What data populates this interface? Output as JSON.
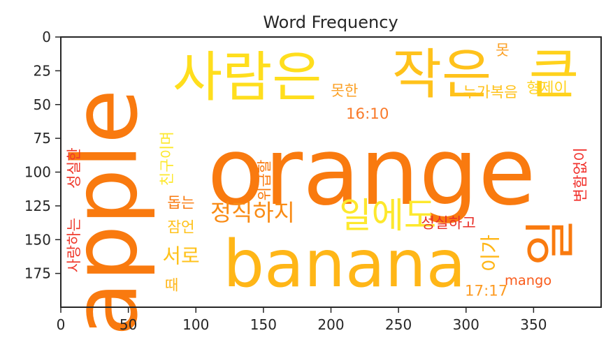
{
  "chart_data": {
    "type": "wordcloud",
    "title": "Word Frequency",
    "xlim": [
      0,
      400
    ],
    "ylim": [
      200,
      0
    ],
    "xticks": [
      0,
      50,
      100,
      150,
      200,
      250,
      300,
      350
    ],
    "yticks": [
      0,
      25,
      50,
      75,
      100,
      125,
      150,
      175
    ],
    "grid": false,
    "palette": "yellow-orange-red",
    "words": [
      {
        "text": "orange",
        "x": 230,
        "y": 100,
        "size": 69,
        "rotation": 0,
        "color": "#f97a0f"
      },
      {
        "text": "apple",
        "x": 33,
        "y": 130,
        "size": 66,
        "rotation": -90,
        "color": "#f97a0f"
      },
      {
        "text": "banana",
        "x": 210,
        "y": 168,
        "size": 48,
        "rotation": 0,
        "color": "#ffb617"
      },
      {
        "text": "사람은",
        "x": 138,
        "y": 30,
        "size": 40,
        "rotation": 0,
        "color": "#ffde1d"
      },
      {
        "text": "작은",
        "x": 282,
        "y": 28,
        "size": 40,
        "rotation": 0,
        "color": "#ffc21b"
      },
      {
        "text": "큰",
        "x": 365,
        "y": 28,
        "size": 40,
        "rotation": 0,
        "color": "#ffd21d"
      },
      {
        "text": "일",
        "x": 363,
        "y": 152,
        "size": 38,
        "rotation": -90,
        "color": "#f97a0f"
      },
      {
        "text": "일에도",
        "x": 242,
        "y": 132,
        "size": 26,
        "rotation": 0,
        "color": "#fde82d"
      },
      {
        "text": "정직하지",
        "x": 142,
        "y": 130,
        "size": 17,
        "rotation": 0,
        "color": "#f98b15"
      },
      {
        "text": "서로",
        "x": 89,
        "y": 162,
        "size": 15,
        "rotation": 0,
        "color": "#ffc21b"
      },
      {
        "text": "누가복음",
        "x": 318,
        "y": 41,
        "size": 11,
        "rotation": 0,
        "color": "#ffc21b"
      },
      {
        "text": "형제이",
        "x": 360,
        "y": 38,
        "size": 11,
        "rotation": 0,
        "color": "#ffd21d"
      },
      {
        "text": "못한",
        "x": 210,
        "y": 40,
        "size": 11,
        "rotation": 0,
        "color": "#fba127"
      },
      {
        "text": "못",
        "x": 327,
        "y": 10,
        "size": 11,
        "rotation": 0,
        "color": "#fba127"
      },
      {
        "text": "16:10",
        "x": 227,
        "y": 57,
        "size": 11,
        "rotation": 0,
        "color": "#f97a2a"
      },
      {
        "text": "친구이며",
        "x": 79,
        "y": 90,
        "size": 11,
        "rotation": -90,
        "color": "#fde82d"
      },
      {
        "text": "위급할",
        "x": 151,
        "y": 106,
        "size": 11,
        "rotation": -90,
        "color": "#f97a0f"
      },
      {
        "text": "변함없이",
        "x": 385,
        "y": 102,
        "size": 11,
        "rotation": -90,
        "color": "#f1322d"
      },
      {
        "text": "성실한",
        "x": 10,
        "y": 97,
        "size": 11,
        "rotation": -90,
        "color": "#ef3a2d"
      },
      {
        "text": "사랑하는",
        "x": 10,
        "y": 154,
        "size": 11,
        "rotation": -90,
        "color": "#ef3a2d"
      },
      {
        "text": "돕는",
        "x": 89,
        "y": 123,
        "size": 11,
        "rotation": 0,
        "color": "#f97a0f"
      },
      {
        "text": "잠언",
        "x": 89,
        "y": 141,
        "size": 11,
        "rotation": 0,
        "color": "#ffc21b"
      },
      {
        "text": "때",
        "x": 82,
        "y": 184,
        "size": 11,
        "rotation": 0,
        "color": "#ffb617"
      },
      {
        "text": "성실하고",
        "x": 287,
        "y": 138,
        "size": 11,
        "rotation": 0,
        "color": "#e8302a"
      },
      {
        "text": "이가",
        "x": 318,
        "y": 160,
        "size": 15,
        "rotation": -90,
        "color": "#ffb617"
      },
      {
        "text": "mango",
        "x": 346,
        "y": 180,
        "size": 10,
        "rotation": 0,
        "color": "#f95c1c"
      },
      {
        "text": "17:17",
        "x": 315,
        "y": 188,
        "size": 11,
        "rotation": 0,
        "color": "#fd9a21"
      }
    ]
  }
}
